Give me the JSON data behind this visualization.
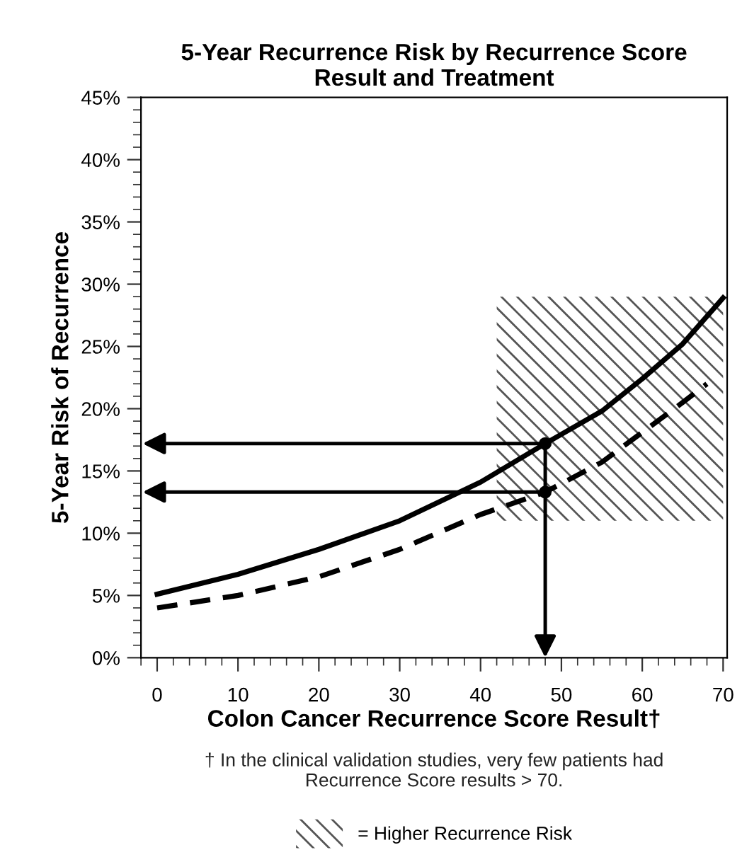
{
  "chart_data": {
    "type": "line",
    "title": "5-Year Recurrence Risk by Recurrence Score\nResult and Treatment",
    "xlabel": "Colon Cancer Recurrence Score Result†",
    "ylabel": "5-Year Risk of Recurrence",
    "series": [
      {
        "color": "#000000",
        "line_style": "solid",
        "x": [
          0,
          10,
          20,
          30,
          40,
          48,
          55,
          60,
          65,
          70
        ],
        "values": [
          5.1,
          6.7,
          8.7,
          11.0,
          14.1,
          17.2,
          19.8,
          22.4,
          25.2,
          28.9
        ]
      },
      {
        "color": "#000000",
        "line_style": "dashed",
        "x": [
          0,
          10,
          20,
          30,
          40,
          48,
          55,
          60,
          65,
          68
        ],
        "values": [
          4.0,
          5.0,
          6.5,
          8.7,
          11.5,
          13.3,
          15.7,
          18.1,
          20.5,
          22.0
        ]
      },
      {
        "type": "scatter",
        "color": "#000000",
        "marker": "circle",
        "x": [
          48,
          48
        ],
        "values": [
          17.2,
          13.3
        ]
      },
      {
        "type": "area",
        "name": "= Higher Recurrence Risk",
        "color": "#555555",
        "x": [
          42,
          70
        ],
        "values": [
          null,
          null
        ],
        "lower": [
          11,
          11
        ],
        "upper": [
          29,
          29
        ]
      }
    ],
    "annotations": [
      "† In the clinical validation studies, very few patients had\nRecurrence Score results > 70."
    ],
    "xlim": [
      -2,
      70.5
    ],
    "xticks": [
      0,
      10,
      20,
      30,
      40,
      50,
      60,
      70
    ],
    "ylim": [
      0,
      45
    ],
    "yticks": [
      {
        "value": 0,
        "label": "0%"
      },
      {
        "value": 5,
        "label": "5%"
      },
      {
        "value": 10,
        "label": "10%"
      },
      {
        "value": 15,
        "label": "15%"
      },
      {
        "value": 20,
        "label": "20%"
      },
      {
        "value": 25,
        "label": "25%"
      },
      {
        "value": 30,
        "label": "30%"
      },
      {
        "value": 35,
        "label": "35%"
      },
      {
        "value": 40,
        "label": "40%"
      },
      {
        "value": 45,
        "label": "45%"
      }
    ],
    "legend": "bottom"
  }
}
